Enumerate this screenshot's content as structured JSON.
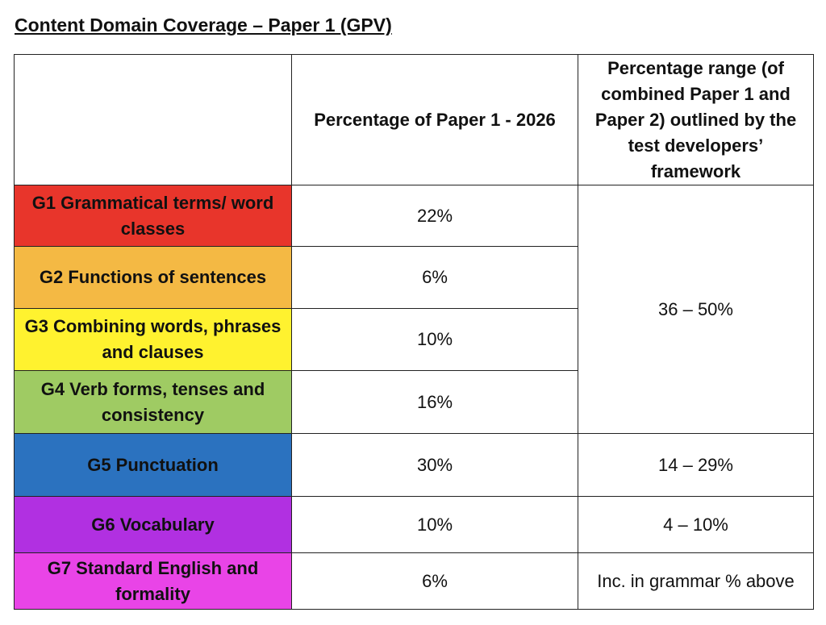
{
  "title": "Content Domain Coverage – Paper 1 (GPV)",
  "table": {
    "headers": [
      "Percentage of Paper 1 - 2026",
      "Percentage range (of combined Paper 1 and Paper 2) outlined by the test developers’ framework"
    ],
    "rows": [
      {
        "domain": "G1 Grammatical terms/ word classes",
        "color": "#e8352b",
        "percent": "22%",
        "range": "36 – 50%"
      },
      {
        "domain": "G2 Functions of sentences",
        "color": "#f4b944",
        "percent": "6%"
      },
      {
        "domain": "G3 Combining words, phrases and clauses",
        "color": "#fff22f",
        "percent": "10%"
      },
      {
        "domain": "G4 Verb forms, tenses and consistency",
        "color": "#9fcb63",
        "percent": "16%"
      },
      {
        "domain": "G5 Punctuation",
        "color": "#2b72bf",
        "percent": "30%",
        "range": "14 – 29%"
      },
      {
        "domain": "G6 Vocabulary",
        "color": "#b130e1",
        "percent": "10%",
        "range": "4 – 10%"
      },
      {
        "domain": "G7 Standard English and formality",
        "color": "#e944e7",
        "percent": "6%",
        "range": "Inc. in grammar % above"
      }
    ]
  }
}
